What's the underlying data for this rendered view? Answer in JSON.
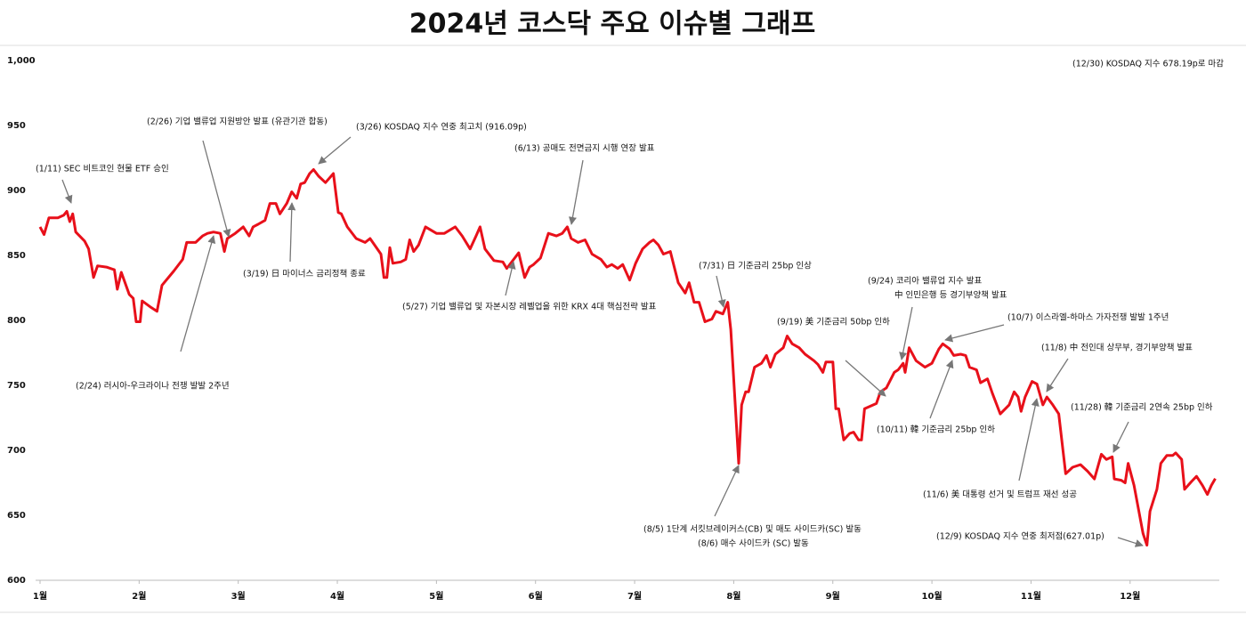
{
  "chart_data": {
    "type": "line",
    "title": "2024년 코스닥 주요 이슈별 그래프",
    "xlim": [
      1,
      12.9
    ],
    "xticks": [
      {
        "value": 1,
        "label": "1월"
      },
      {
        "value": 2,
        "label": "2월"
      },
      {
        "value": 3,
        "label": "3월"
      },
      {
        "value": 4,
        "label": "4월"
      },
      {
        "value": 5,
        "label": "5월"
      },
      {
        "value": 6,
        "label": "6월"
      },
      {
        "value": 7,
        "label": "7월"
      },
      {
        "value": 8,
        "label": "8월"
      },
      {
        "value": 9,
        "label": "9월"
      },
      {
        "value": 10,
        "label": "10월"
      },
      {
        "value": 11,
        "label": "11월"
      },
      {
        "value": 12,
        "label": "12월"
      }
    ],
    "ylim": [
      600,
      1000
    ],
    "yticks": [
      600,
      650,
      700,
      750,
      800,
      850,
      900,
      950,
      {
        "value": 1000,
        "label": "1,000"
      }
    ],
    "series": [
      {
        "name": "KOSDAQ",
        "color": "#e8101a",
        "x": [
          1.0,
          1.04,
          1.09,
          1.18,
          1.24,
          1.27,
          1.3,
          1.33,
          1.36,
          1.45,
          1.49,
          1.54,
          1.58,
          1.67,
          1.75,
          1.78,
          1.82,
          1.9,
          1.94,
          1.97,
          2.01,
          2.03,
          2.12,
          2.18,
          2.23,
          2.35,
          2.44,
          2.48,
          2.57,
          2.64,
          2.69,
          2.75,
          2.82,
          2.86,
          2.89,
          2.97,
          3.05,
          3.11,
          3.15,
          3.2,
          3.27,
          3.32,
          3.38,
          3.42,
          3.49,
          3.54,
          3.59,
          3.63,
          3.67,
          3.72,
          3.76,
          3.81,
          3.88,
          3.96,
          4.01,
          4.04,
          4.1,
          4.19,
          4.28,
          4.33,
          4.44,
          4.47,
          4.5,
          4.53,
          4.56,
          4.64,
          4.69,
          4.73,
          4.77,
          4.82,
          4.89,
          5.0,
          5.08,
          5.19,
          5.26,
          5.34,
          5.4,
          5.44,
          5.49,
          5.58,
          5.67,
          5.71,
          5.78,
          5.83,
          5.89,
          5.94,
          5.98,
          6.05,
          6.13,
          6.21,
          6.27,
          6.32,
          6.36,
          6.43,
          6.5,
          6.57,
          6.66,
          6.72,
          6.77,
          6.83,
          6.88,
          6.95,
          7.01,
          7.08,
          7.15,
          7.19,
          7.24,
          7.29,
          7.36,
          7.4,
          7.44,
          7.51,
          7.55,
          7.6,
          7.65,
          7.71,
          7.78,
          7.82,
          7.89,
          7.94,
          7.97,
          8.05,
          8.08,
          8.12,
          8.15,
          8.21,
          8.28,
          8.33,
          8.37,
          8.42,
          8.5,
          8.54,
          8.59,
          8.66,
          8.72,
          8.81,
          8.85,
          8.9,
          8.93,
          9.0,
          9.03,
          9.06,
          9.11,
          9.17,
          9.21,
          9.26,
          9.29,
          9.32,
          9.44,
          9.48,
          9.54,
          9.62,
          9.66,
          9.71,
          9.73,
          9.77,
          9.84,
          9.93,
          10.0,
          10.07,
          10.11,
          10.18,
          10.22,
          10.29,
          10.34,
          10.38,
          10.45,
          10.49,
          10.56,
          10.61,
          10.69,
          10.78,
          10.83,
          10.87,
          10.9,
          10.94,
          11.01,
          11.06,
          11.12,
          11.16,
          11.22,
          11.28,
          11.35,
          11.42,
          11.5,
          11.57,
          11.64,
          11.71,
          11.76,
          11.82,
          11.84,
          11.91,
          11.95,
          11.98,
          12.04,
          12.13,
          12.17,
          12.2,
          12.27,
          12.31,
          12.37,
          12.43,
          12.46,
          12.52,
          12.55,
          12.62,
          12.67,
          12.73,
          12.78,
          12.82,
          12.86
        ],
        "values": [
          872,
          866,
          879,
          879,
          881,
          884,
          876,
          882,
          868,
          861,
          855,
          833,
          842,
          841,
          839,
          824,
          837,
          820,
          817,
          799,
          799,
          815,
          810,
          807,
          827,
          838,
          847,
          860,
          860,
          865,
          867,
          868,
          867,
          853,
          863,
          867,
          872,
          865,
          872,
          874,
          877,
          890,
          890,
          882,
          890,
          899,
          894,
          905,
          906,
          913,
          916.09,
          911,
          906,
          913,
          883,
          882,
          872,
          863,
          860,
          863,
          851,
          833,
          833,
          856,
          844,
          845,
          847,
          862,
          853,
          858,
          872,
          867,
          867,
          872,
          865,
          855,
          865,
          872,
          855,
          846,
          845,
          840,
          847,
          852,
          833,
          841,
          843,
          848,
          867,
          865,
          867,
          872,
          863,
          860,
          862,
          851,
          847,
          841,
          843,
          840,
          843,
          831,
          844,
          855,
          860,
          862,
          858,
          851,
          853,
          841,
          829,
          821,
          829,
          814,
          814,
          799,
          801,
          807,
          805,
          814,
          793,
          690,
          735,
          745,
          745,
          764,
          767,
          773,
          764,
          774,
          779,
          788,
          782,
          779,
          774,
          769,
          766,
          760,
          768,
          768,
          732,
          732,
          708,
          713,
          714,
          708,
          708,
          732,
          736,
          745,
          748,
          760,
          762,
          767,
          760,
          779,
          769,
          764,
          767,
          778,
          782,
          778,
          773,
          774,
          773,
          764,
          762,
          752,
          755,
          744,
          728,
          735,
          745,
          741,
          730,
          741,
          753,
          751,
          735,
          741,
          735,
          728,
          682,
          687,
          689,
          684,
          678,
          697,
          693,
          695,
          678,
          677,
          675,
          690,
          673,
          636,
          627.01,
          653,
          670,
          690,
          696,
          696,
          698,
          693,
          670,
          676,
          680,
          673,
          666,
          673,
          678.19
        ]
      }
    ],
    "annotations": [
      {
        "lines": [
          "(1/11) SEC 비트코인 현물 ETF 승인"
        ],
        "color": "#111111"
      },
      {
        "lines": [
          "(2/26) 기업 밸류업 지원방안 발표 (유관기관 합동)"
        ],
        "color": "#111111"
      },
      {
        "lines": [
          "(3/26) KOSDAQ 지수 연중 최고치 (916.09p)"
        ],
        "color": "#e8101a"
      },
      {
        "lines": [
          "(6/13) 공매도 전면금지 시행 연장 발표"
        ],
        "color": "#111111"
      },
      {
        "lines": [
          "(3/19) 日 마이너스 금리정책 종료"
        ],
        "color": "#111111"
      },
      {
        "lines": [
          "(5/27) 기업 밸류업 및 자본시장 레벨업을 위한 KRX 4대 핵심전략 발표"
        ],
        "color": "#111111"
      },
      {
        "lines": [
          "(2/24) 러시아-우크라이나 전쟁 발발 2주년"
        ],
        "color": "#111111"
      },
      {
        "lines": [
          "(7/31) 日 기준금리 25bp 인상"
        ],
        "color": "#111111"
      },
      {
        "lines": [
          "(8/5) 1단계 서킷브레이커스(CB) 및 매도 사이드카(SC) 발동",
          "(8/6) 매수 사이드카 (SC) 발동"
        ],
        "color": "#111111"
      },
      {
        "lines": [
          "(9/19) 美 기준금리 50bp 인하"
        ],
        "color": "#111111"
      },
      {
        "lines": [
          "(9/24) 코리아 밸류업 지수 발표",
          "中 인민은행 등 경기부양책 발표"
        ],
        "color": "#111111"
      },
      {
        "lines": [
          "(10/7) 이스라엘-하마스 가자전쟁 발발 1주년"
        ],
        "color": "#111111"
      },
      {
        "lines": [
          "(10/11) 韓 기준금리 25bp 인하"
        ],
        "color": "#111111"
      },
      {
        "lines": [
          "(11/8) 中 전인대 상무부, 경기부양책 발표"
        ],
        "color": "#111111"
      },
      {
        "lines": [
          "(11/28) 韓 기준금리 2연속 25bp 인하"
        ],
        "color": "#111111"
      },
      {
        "lines": [
          "(11/6) 美 대통령 선거 및 트럼프 재선 성공"
        ],
        "color": "#111111"
      },
      {
        "lines": [
          "(12/9) KOSDAQ 지수 연중 최저점(627.01p)"
        ],
        "color": "#2a2ab8"
      },
      {
        "lines": [
          "(12/30) KOSDAQ 지수 678.19p로 마감"
        ],
        "color": "#111111"
      }
    ]
  }
}
